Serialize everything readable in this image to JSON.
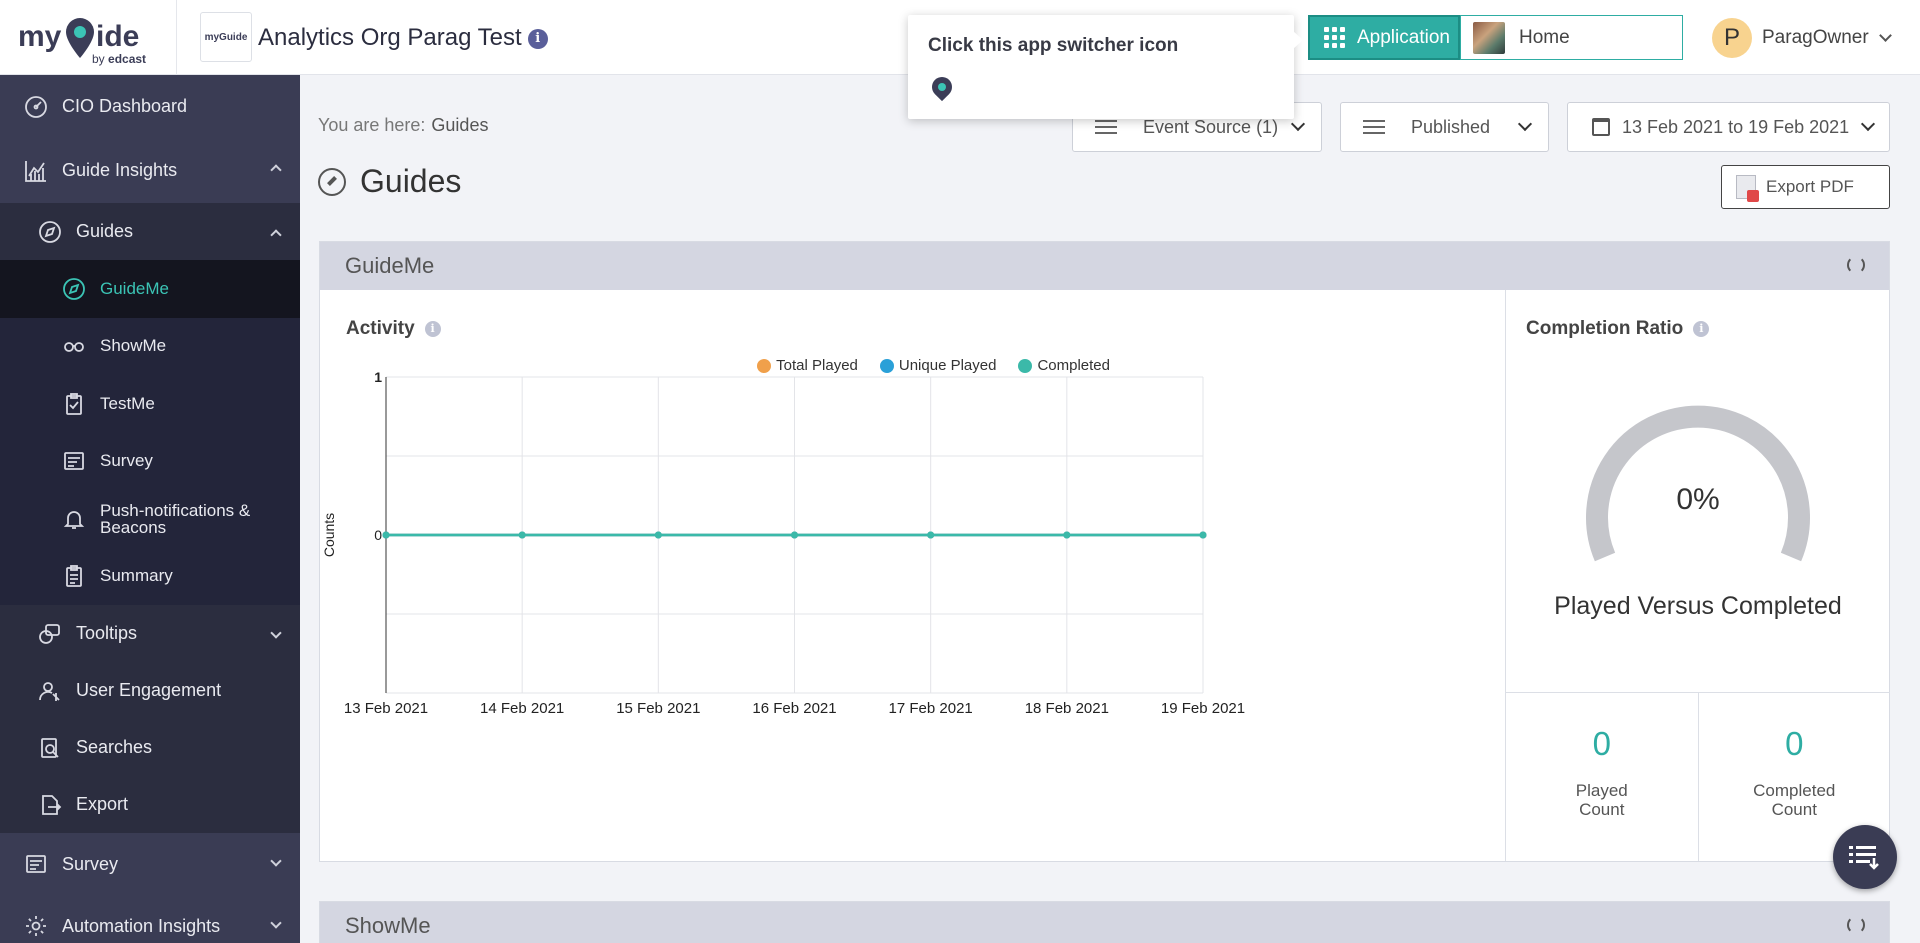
{
  "brand": {
    "word": "myGuide",
    "by_prefix": "by",
    "by_name": "edcast",
    "org_logo_text": "myGuide"
  },
  "header": {
    "org_title": "Analytics Org Parag Test",
    "info_glyph": "i",
    "app_button_label": "Application",
    "app_name": "Home",
    "user_initial": "P",
    "user_name": "ParagOwner"
  },
  "tooltip": {
    "text": "Click this app switcher icon"
  },
  "sidebar": {
    "cio_dashboard": "CIO Dashboard",
    "guide_insights": "Guide Insights",
    "guides": "Guides",
    "leaves": [
      "GuideMe",
      "ShowMe",
      "TestMe",
      "Survey",
      "Push-notifications & Beacons",
      "Summary"
    ],
    "tooltips": "Tooltips",
    "user_engagement": "User Engagement",
    "searches": "Searches",
    "export": "Export",
    "survey": "Survey",
    "automation_insights": "Automation Insights"
  },
  "main": {
    "breadcrumb_prefix": "You are here:",
    "breadcrumb_current": "Guides",
    "filters": {
      "event_source": "Event Source (1)",
      "status": "Published",
      "date_range": "13 Feb 2021 to 19 Feb 2021"
    },
    "page_title": "Guides",
    "export_label": "Export PDF"
  },
  "panels": {
    "guideme": {
      "title": "GuideMe",
      "activity_title": "Activity",
      "legend": [
        {
          "label": "Total Played",
          "color": "#f0a04b"
        },
        {
          "label": "Unique Played",
          "color": "#2aa0d8"
        },
        {
          "label": "Completed",
          "color": "#3bb9a9"
        }
      ],
      "ratio_title": "Completion Ratio",
      "ratio_value": "0%",
      "ratio_label": "Played Versus Completed",
      "played_count": "0",
      "played_label": "Played Count",
      "completed_count": "0",
      "completed_label": "Completed Count"
    },
    "showme": {
      "title": "ShowMe"
    }
  },
  "chart_data": {
    "type": "line",
    "title": "",
    "xlabel": "",
    "ylabel": "Counts",
    "categories": [
      "13 Feb 2021",
      "14 Feb 2021",
      "15 Feb 2021",
      "16 Feb 2021",
      "17 Feb 2021",
      "18 Feb 2021",
      "19 Feb 2021"
    ],
    "series": [
      {
        "name": "Total Played",
        "color": "#f0a04b",
        "values": [
          0,
          0,
          0,
          0,
          0,
          0,
          0
        ]
      },
      {
        "name": "Unique Played",
        "color": "#2aa0d8",
        "values": [
          0,
          0,
          0,
          0,
          0,
          0,
          0
        ]
      },
      {
        "name": "Completed",
        "color": "#3bb9a9",
        "values": [
          0,
          0,
          0,
          0,
          0,
          0,
          0
        ]
      }
    ],
    "ylim": [
      -1,
      1
    ],
    "yticks": [
      "1",
      "0"
    ],
    "grid": true,
    "legend_position": "top-right"
  },
  "colors": {
    "accent": "#2eada3",
    "sidebar": "#2b2d3f",
    "gauge_track": "#c5c6cb"
  }
}
